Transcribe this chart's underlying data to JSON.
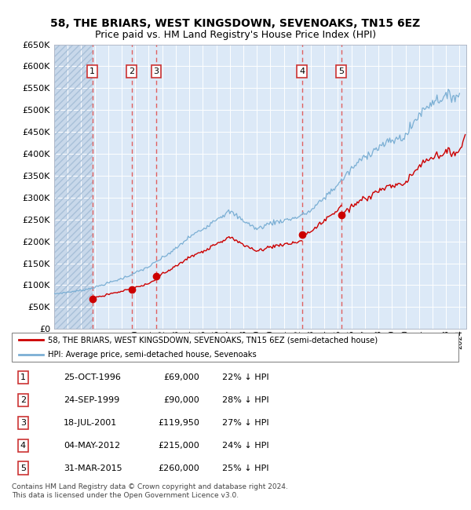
{
  "title": "58, THE BRIARS, WEST KINGSDOWN, SEVENOAKS, TN15 6EZ",
  "subtitle": "Price paid vs. HM Land Registry's House Price Index (HPI)",
  "ylim": [
    0,
    650000
  ],
  "yticks": [
    0,
    50000,
    100000,
    150000,
    200000,
    250000,
    300000,
    350000,
    400000,
    450000,
    500000,
    550000,
    600000,
    650000
  ],
  "ytick_labels": [
    "£0",
    "£50K",
    "£100K",
    "£150K",
    "£200K",
    "£250K",
    "£300K",
    "£350K",
    "£400K",
    "£450K",
    "£500K",
    "£550K",
    "£600K",
    "£650K"
  ],
  "bg_color": "#dce9f7",
  "grid_color": "#ffffff",
  "hatch_color": "#c8d8ea",
  "sale_dates_frac": [
    1996.822,
    1999.731,
    2001.546,
    2012.338,
    2015.247
  ],
  "sale_prices": [
    69000,
    90000,
    119950,
    215000,
    260000
  ],
  "sale_labels": [
    "1",
    "2",
    "3",
    "4",
    "5"
  ],
  "sale_info": [
    {
      "num": "1",
      "date": "25-OCT-1996",
      "price": "£69,000",
      "pct": "22% ↓ HPI"
    },
    {
      "num": "2",
      "date": "24-SEP-1999",
      "price": "£90,000",
      "pct": "28% ↓ HPI"
    },
    {
      "num": "3",
      "date": "18-JUL-2001",
      "price": "£119,950",
      "pct": "27% ↓ HPI"
    },
    {
      "num": "4",
      "date": "04-MAY-2012",
      "price": "£215,000",
      "pct": "24% ↓ HPI"
    },
    {
      "num": "5",
      "date": "31-MAR-2015",
      "price": "£260,000",
      "pct": "25% ↓ HPI"
    }
  ],
  "red_line_color": "#cc0000",
  "blue_line_color": "#7bafd4",
  "marker_color": "#cc0000",
  "dashed_color": "#e06060",
  "legend_label_red": "58, THE BRIARS, WEST KINGSDOWN, SEVENOAKS, TN15 6EZ (semi-detached house)",
  "legend_label_blue": "HPI: Average price, semi-detached house, Sevenoaks",
  "footer": "Contains HM Land Registry data © Crown copyright and database right 2024.\nThis data is licensed under the Open Government Licence v3.0.",
  "xmin": 1994.0,
  "xmax": 2024.5,
  "title_fontsize": 10,
  "subtitle_fontsize": 9
}
